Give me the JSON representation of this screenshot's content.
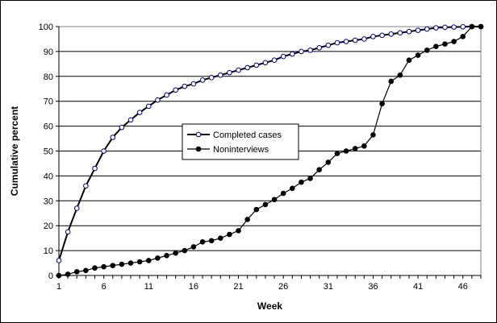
{
  "chart_data": {
    "type": "line",
    "xlabel": "Week",
    "ylabel": "Cumulative percent",
    "xlim": [
      1,
      48
    ],
    "ylim": [
      0,
      100
    ],
    "x_ticks": [
      1,
      6,
      11,
      16,
      21,
      26,
      31,
      36,
      41,
      46
    ],
    "y_ticks": [
      0,
      10,
      20,
      30,
      40,
      50,
      60,
      70,
      80,
      90,
      100
    ],
    "grid": "horizontal",
    "legend_position": "center",
    "x": [
      1,
      2,
      3,
      4,
      5,
      6,
      7,
      8,
      9,
      10,
      11,
      12,
      13,
      14,
      15,
      16,
      17,
      18,
      19,
      20,
      21,
      22,
      23,
      24,
      25,
      26,
      27,
      28,
      29,
      30,
      31,
      32,
      33,
      34,
      35,
      36,
      37,
      38,
      39,
      40,
      41,
      42,
      43,
      44,
      45,
      46,
      47,
      48
    ],
    "series": [
      {
        "name": "Completed cases",
        "marker": "open-circle",
        "color": "#000080",
        "values": [
          6,
          17.5,
          27,
          36,
          43,
          50,
          55.5,
          59.5,
          62.5,
          65.5,
          68,
          70.5,
          72.5,
          74.5,
          76,
          77,
          78.5,
          79.5,
          80.5,
          81.5,
          82.5,
          83.5,
          84.5,
          85.5,
          86.5,
          88,
          89,
          90,
          90.5,
          91.5,
          92.5,
          93.5,
          94,
          94.5,
          95,
          96,
          96.5,
          97,
          97.5,
          98,
          98.5,
          99,
          99.5,
          99.7,
          99.8,
          99.9,
          100,
          100
        ]
      },
      {
        "name": "Noninterviews",
        "marker": "filled-circle",
        "color": "#000000",
        "values": [
          0,
          0.5,
          1.5,
          2,
          3,
          3.5,
          4,
          4.5,
          5,
          5.5,
          6,
          7,
          8,
          9,
          10,
          11.5,
          13.5,
          14,
          15,
          16.5,
          18,
          22.5,
          26.5,
          28.5,
          30.5,
          33,
          35,
          37.5,
          39,
          42.5,
          45.5,
          49,
          50,
          51,
          52,
          56.5,
          69,
          78,
          80.5,
          86.5,
          88.5,
          90.5,
          92,
          93,
          94,
          96,
          100,
          100
        ]
      }
    ]
  }
}
